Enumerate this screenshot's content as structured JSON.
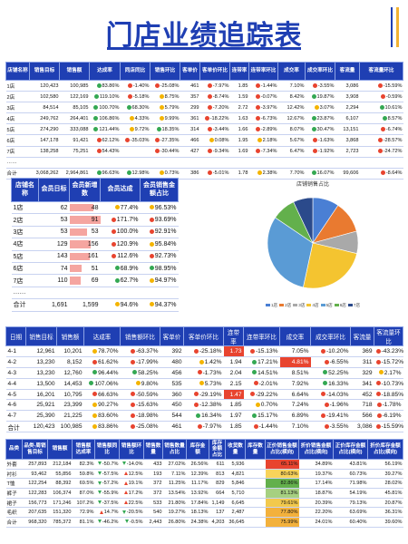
{
  "title": "门店业绩追踪表",
  "colors": {
    "primary": "#1f3fb3",
    "up": "#e8442f",
    "down": "#34a853",
    "highlight": "#e8442f"
  },
  "table1": {
    "headers": [
      "店铺名称",
      "销售目标",
      "销售额",
      "达成率",
      "同店同比",
      "销售环比",
      "客单价",
      "客单价环比",
      "连带率",
      "连带率环比",
      "成交率",
      "成交率环比",
      "客流量",
      "客流量环比"
    ],
    "rows": [
      {
        "name": "1店",
        "target": "120,423",
        "sales": "100,985",
        "rate": "83.86%",
        "rate_dot": "g",
        "yoy": "-1.40%",
        "yoy_dot": "r",
        "mom": "-25.08%",
        "mom_dot": "r",
        "price": "461",
        "price_mom": "-7.97%",
        "price_dot": "r",
        "join": "1.85",
        "join_mom": "-1.44%",
        "join_dot": "r",
        "deal": "7.10%",
        "deal_mom": "-3.55%",
        "deal_dot": "r",
        "traffic": "3,086",
        "traffic_mom": "-15.59%",
        "traffic_dot": "r"
      },
      {
        "name": "2店",
        "target": "102,580",
        "sales": "122,169",
        "rate": "119.10%",
        "rate_dot": "g",
        "yoy": "-5.18%",
        "yoy_dot": "r",
        "mom": "8.75%",
        "mom_dot": "y",
        "price": "357",
        "price_mom": "-8.74%",
        "price_dot": "r",
        "join": "1.59",
        "join_mom": "-0.07%",
        "join_dot": "r",
        "deal": "8.42%",
        "deal_mom": "19.87%",
        "deal_dot": "g",
        "traffic": "3,908",
        "traffic_mom": "-0.59%",
        "traffic_dot": "r"
      },
      {
        "name": "3店",
        "target": "84,514",
        "sales": "85,105",
        "rate": "100.70%",
        "rate_dot": "g",
        "yoy": "68.30%",
        "yoy_dot": "g",
        "mom": "5.79%",
        "mom_dot": "y",
        "price": "299",
        "price_mom": "-7.20%",
        "price_dot": "r",
        "join": "2.72",
        "join_mom": "-3.97%",
        "join_dot": "r",
        "deal": "12.42%",
        "deal_mom": "3.07%",
        "deal_dot": "y",
        "traffic": "2,294",
        "traffic_mom": "10.61%",
        "traffic_dot": "g"
      },
      {
        "name": "4店",
        "target": "249,762",
        "sales": "264,401",
        "rate": "106.86%",
        "rate_dot": "g",
        "yoy": "4.33%",
        "yoy_dot": "y",
        "mom": "9.99%",
        "mom_dot": "y",
        "price": "361",
        "price_mom": "-18.22%",
        "price_dot": "r",
        "join": "1.63",
        "join_mom": "-6.73%",
        "join_dot": "r",
        "deal": "12.67%",
        "deal_mom": "23.87%",
        "deal_dot": "g",
        "traffic": "6,107",
        "traffic_mom": "8.57%",
        "traffic_dot": "g"
      },
      {
        "name": "5店",
        "target": "274,290",
        "sales": "333,088",
        "rate": "121.44%",
        "rate_dot": "g",
        "yoy": "9.72%",
        "yoy_dot": "y",
        "mom": "18.35%",
        "mom_dot": "g",
        "price": "314",
        "price_mom": "-3.44%",
        "price_dot": "r",
        "join": "1.66",
        "join_mom": "-2.89%",
        "join_dot": "r",
        "deal": "8.07%",
        "deal_mom": "30.47%",
        "deal_dot": "g",
        "traffic": "13,151",
        "traffic_mom": "-6.74%",
        "traffic_dot": "r"
      },
      {
        "name": "6店",
        "target": "147,178",
        "sales": "91,421",
        "rate": "62.12%",
        "rate_dot": "r",
        "yoy": "-35.03%",
        "yoy_dot": "r",
        "mom": "-27.35%",
        "mom_dot": "r",
        "price": "466",
        "price_mom": "0.08%",
        "price_dot": "y",
        "join": "1.95",
        "join_mom": "2.18%",
        "join_dot": "y",
        "deal": "5.67%",
        "deal_mom": "-1.63%",
        "deal_dot": "r",
        "traffic": "3,868",
        "traffic_mom": "-28.57%",
        "traffic_dot": "r"
      },
      {
        "name": "7店",
        "target": "138,258",
        "sales": "75,251",
        "rate": "54.43%",
        "rate_dot": "r",
        "yoy": "",
        "yoy_dot": "",
        "mom": "-30.44%",
        "mom_dot": "r",
        "price": "427",
        "price_mom": "-9.34%",
        "price_dot": "r",
        "join": "1.69",
        "join_mom": "-7.34%",
        "join_dot": "r",
        "deal": "6.47%",
        "deal_mom": "-1.92%",
        "deal_dot": "r",
        "traffic": "2,723",
        "traffic_mom": "-24.72%",
        "traffic_dot": "r"
      },
      {
        "name": "……",
        "target": "",
        "sales": "",
        "rate": "",
        "rate_dot": "",
        "yoy": "",
        "yoy_dot": "",
        "mom": "",
        "mom_dot": "",
        "price": "",
        "price_mom": "",
        "price_dot": "",
        "join": "",
        "join_mom": "",
        "join_dot": "",
        "deal": "",
        "deal_mom": "",
        "deal_dot": "",
        "traffic": "",
        "traffic_mom": "",
        "traffic_dot": ""
      }
    ],
    "total": {
      "name": "合计",
      "target": "3,068,262",
      "sales": "2,964,861",
      "rate": "96.63%",
      "rate_dot": "g",
      "yoy": "12.98%",
      "yoy_dot": "g",
      "mom": "0.73%",
      "mom_dot": "y",
      "price": "386",
      "price_mom": "-5.01%",
      "price_dot": "r",
      "join": "1.78",
      "join_mom": "2.38%",
      "join_dot": "y",
      "deal": "7.70%",
      "deal_mom": "16.07%",
      "deal_dot": "g",
      "traffic": "99,606",
      "traffic_mom": "-8.64%",
      "traffic_dot": "r"
    }
  },
  "table2": {
    "headers": [
      "店铺名称",
      "会员日标",
      "会员新增数",
      "会员达成",
      "会员销售金额占比"
    ],
    "rows": [
      {
        "name": "1店",
        "target": "62",
        "added": "48",
        "rate": "77.4%",
        "rate_pct": 77.4,
        "rate_dot": "y",
        "share": "96.53%",
        "share_dot": "y"
      },
      {
        "name": "2店",
        "target": "53",
        "added": "91",
        "rate": "171.7%",
        "rate_pct": 100,
        "rate_dot": "r",
        "share": "93.69%",
        "share_dot": "r"
      },
      {
        "name": "3店",
        "target": "53",
        "added": "53",
        "rate": "100.0%",
        "rate_pct": 58.2,
        "rate_dot": "r",
        "share": "92.91%",
        "share_dot": "r"
      },
      {
        "name": "4店",
        "target": "129",
        "added": "156",
        "rate": "120.9%",
        "rate_pct": 70.4,
        "rate_dot": "r",
        "share": "95.84%",
        "share_dot": "y"
      },
      {
        "name": "5店",
        "target": "143",
        "added": "161",
        "rate": "112.6%",
        "rate_pct": 65.6,
        "rate_dot": "r",
        "share": "92.73%",
        "share_dot": "r"
      },
      {
        "name": "6店",
        "target": "74",
        "added": "51",
        "rate": "68.9%",
        "rate_pct": 40.1,
        "rate_dot": "g",
        "share": "98.95%",
        "share_dot": "g"
      },
      {
        "name": "7店",
        "target": "110",
        "added": "69",
        "rate": "62.7%",
        "rate_pct": 36.5,
        "rate_dot": "g",
        "share": "94.97%",
        "share_dot": "y"
      },
      {
        "name": "……",
        "target": "",
        "added": "",
        "rate": "",
        "rate_pct": 0,
        "rate_dot": "",
        "share": "",
        "share_dot": ""
      }
    ],
    "total": {
      "name": "合计",
      "target": "1,691",
      "added": "1,599",
      "rate": "94.6%",
      "rate_dot": "y",
      "share": "94.37%",
      "share_dot": "y"
    }
  },
  "chart_data": {
    "type": "pie",
    "title": "店铺销售占比",
    "categories": [
      "1店",
      "2店",
      "3店",
      "4店",
      "5店",
      "6店",
      "7店"
    ],
    "values": [
      100985,
      122169,
      85105,
      264401,
      333088,
      91421,
      75251
    ],
    "colors": [
      "#4a7fd4",
      "#e97a30",
      "#a9a9a9",
      "#f4c430",
      "#5a9bd5",
      "#63b04c",
      "#2b4a8b"
    ]
  },
  "table3": {
    "headers": [
      "日期",
      "销售目标",
      "销售额",
      "达成率",
      "销售额环比",
      "客单价",
      "客单价环比",
      "连带率",
      "连带率环比",
      "成交率",
      "成交率环比",
      "客流量",
      "客流量环比"
    ],
    "rows": [
      {
        "date": "4-1",
        "target": "12,961",
        "sales": "10,201",
        "rate": "78.70%",
        "rate_dot": "y",
        "mom": "-63.37%",
        "mom_dot": "r",
        "price": "392",
        "price_mom": "-25.18%",
        "price_dot": "r",
        "join": "1.73",
        "join_hl": true,
        "join_mom": "-15.13%",
        "join_dot": "r",
        "deal": "7.05%",
        "deal_hl": false,
        "deal_mom": "-10.20%",
        "deal_dot": "r",
        "traffic": "369",
        "traffic_mom": "-43.23%",
        "traffic_dot": "r"
      },
      {
        "date": "4-2",
        "target": "13,230",
        "sales": "8,152",
        "rate": "61.62%",
        "rate_dot": "r",
        "mom": "-17.99%",
        "mom_dot": "r",
        "price": "480",
        "price_mom": "1.42%",
        "price_dot": "y",
        "join": "1.94",
        "join_hl": false,
        "join_mom": "17.21%",
        "join_dot": "g",
        "deal": "4.81%",
        "deal_hl": true,
        "deal_mom": "-6.55%",
        "deal_dot": "r",
        "traffic": "311",
        "traffic_mom": "-15.72%",
        "traffic_dot": "r"
      },
      {
        "date": "4-3",
        "target": "13,230",
        "sales": "12,760",
        "rate": "96.44%",
        "rate_dot": "g",
        "mom": "58.25%",
        "mom_dot": "g",
        "price": "456",
        "price_mom": "-1.73%",
        "price_dot": "r",
        "join": "2.04",
        "join_hl": false,
        "join_mom": "14.51%",
        "join_dot": "g",
        "deal": "8.51%",
        "deal_hl": false,
        "deal_mom": "52.25%",
        "deal_dot": "g",
        "traffic": "329",
        "traffic_mom": "2.17%",
        "traffic_dot": "y"
      },
      {
        "date": "4-4",
        "target": "13,500",
        "sales": "14,453",
        "rate": "107.06%",
        "rate_dot": "g",
        "mom": "9.80%",
        "mom_dot": "y",
        "price": "535",
        "price_mom": "5.73%",
        "price_dot": "y",
        "join": "2.15",
        "join_hl": false,
        "join_mom": "-2.01%",
        "join_dot": "r",
        "deal": "7.92%",
        "deal_hl": false,
        "deal_mom": "16.33%",
        "deal_dot": "g",
        "traffic": "341",
        "traffic_mom": "-10.73%",
        "traffic_dot": "r"
      },
      {
        "date": "4-5",
        "target": "16,201",
        "sales": "10,795",
        "rate": "66.63%",
        "rate_dot": "r",
        "mom": "-50.59%",
        "mom_dot": "r",
        "price": "360",
        "price_mom": "-29.19%",
        "price_dot": "r",
        "join": "1.47",
        "join_hl": true,
        "join_mom": "-29.22%",
        "join_dot": "r",
        "deal": "6.64%",
        "deal_hl": false,
        "deal_mom": "-14.03%",
        "deal_dot": "r",
        "traffic": "452",
        "traffic_mom": "-18.85%",
        "traffic_dot": "r"
      },
      {
        "date": "4-6",
        "target": "25,921",
        "sales": "23,399",
        "rate": "90.27%",
        "rate_dot": "y",
        "mom": "-15.63%",
        "mom_dot": "r",
        "price": "450",
        "price_mom": "-12.38%",
        "price_dot": "r",
        "join": "1.85",
        "join_hl": false,
        "join_mom": "0.70%",
        "join_dot": "y",
        "deal": "7.24%",
        "deal_hl": false,
        "deal_mom": "-1.96%",
        "deal_dot": "r",
        "traffic": "718",
        "traffic_mom": "-1.78%",
        "traffic_dot": "r"
      },
      {
        "date": "4-7",
        "target": "25,390",
        "sales": "21,225",
        "rate": "83.60%",
        "rate_dot": "y",
        "mom": "-18.98%",
        "mom_dot": "r",
        "price": "544",
        "price_mom": "16.34%",
        "price_dot": "g",
        "join": "1.97",
        "join_hl": false,
        "join_mom": "15.17%",
        "join_dot": "g",
        "deal": "6.89%",
        "deal_hl": false,
        "deal_mom": "-19.41%",
        "deal_dot": "r",
        "traffic": "566",
        "traffic_mom": "-6.19%",
        "traffic_dot": "r"
      }
    ],
    "total": {
      "date": "合计",
      "target": "120,423",
      "sales": "100,985",
      "rate": "83.86%",
      "rate_dot": "y",
      "mom": "-25.08%",
      "mom_dot": "r",
      "price": "461",
      "price_mom": "-7.97%",
      "price_dot": "r",
      "join": "1.85",
      "join_hl": false,
      "join_mom": "-1.44%",
      "join_dot": "r",
      "deal": "7.10%",
      "deal_hl": false,
      "deal_mom": "-3.55%",
      "deal_dot": "r",
      "traffic": "3,086",
      "traffic_mom": "-15.59%",
      "traffic_dot": "r"
    }
  },
  "table4": {
    "headers": [
      "品类",
      "品类-周销售目标",
      "销售额",
      "销售额达成率",
      "销售额同比",
      "销售额环比",
      "销售数量",
      "销售数量占比",
      "库存金额",
      "库存金额占比",
      "收货数量",
      "库存数量",
      "正价销售金额占比(横向)",
      "折价销售金额占比(横向)",
      "正价库存金额占比(横向)",
      "折价库存金额占比(横向)"
    ],
    "rows": [
      {
        "cat": "外套",
        "target": "257,893",
        "sales": "212,184",
        "rate": "82.3%",
        "yoy": "-50.7%",
        "yoy_tri": "d",
        "mom": "-14.0%",
        "mom_tri": "d",
        "qty": "433",
        "qty_share": "27.02%",
        "stock": "26.56%",
        "stock_share": "611",
        "recv": "5,936",
        "inv": "",
        "p1": "65.11%",
        "p1_bg": "#e8442f",
        "p2": "34.89%",
        "p3": "43.81%",
        "p4": "56.19%"
      },
      {
        "cat": "衬衫",
        "target": "93,462",
        "sales": "55,856",
        "rate": "59.8%",
        "yoy": "-57.5%",
        "yoy_tri": "d",
        "mom": "12.5%",
        "mom_tri": "u",
        "qty": "193",
        "qty_share": "7.11%",
        "stock": "12.39%",
        "stock_share": "813",
        "recv": "4,821",
        "inv": "",
        "p1": "80.63%",
        "p1_bg": "#f8d35a",
        "p2": "19.37%",
        "p3": "60.73%",
        "p4": "39.27%"
      },
      {
        "cat": "T恤",
        "target": "122,254",
        "sales": "88,392",
        "rate": "69.5%",
        "yoy": "-57.2%",
        "yoy_tri": "d",
        "mom": "19.1%",
        "mom_tri": "u",
        "qty": "372",
        "qty_share": "11.25%",
        "stock": "11.17%",
        "stock_share": "829",
        "recv": "5,846",
        "inv": "",
        "p1": "82.86%",
        "p1_bg": "#63b04c",
        "p2": "17.14%",
        "p3": "71.98%",
        "p4": "28.02%"
      },
      {
        "cat": "裤子",
        "target": "122,283",
        "sales": "106,374",
        "rate": "87.0%",
        "yoy": "-55.9%",
        "yoy_tri": "d",
        "mom": "17.2%",
        "mom_tri": "u",
        "qty": "372",
        "qty_share": "13.54%",
        "stock": "13.92%",
        "stock_share": "664",
        "recv": "5,710",
        "inv": "",
        "p1": "81.13%",
        "p1_bg": "#a6d080",
        "p2": "18.87%",
        "p3": "54.19%",
        "p4": "45.81%"
      },
      {
        "cat": "裙子",
        "target": "156,773",
        "sales": "171,246",
        "rate": "107.2%",
        "yoy": "-37.5%",
        "yoy_tri": "d",
        "mom": "22.5%",
        "mom_tri": "u",
        "qty": "533",
        "qty_share": "21.80%",
        "stock": "17.84%",
        "stock_share": "1,149",
        "recv": "6,645",
        "inv": "",
        "p1": "79.61%",
        "p1_bg": "#f2c94c",
        "p2": "20.39%",
        "p3": "79.13%",
        "p4": "20.87%"
      },
      {
        "cat": "毛织",
        "target": "207,635",
        "sales": "151,320",
        "rate": "72.9%",
        "yoy": "14.7%",
        "yoy_tri": "u",
        "mom": "-20.5%",
        "mom_tri": "d",
        "qty": "540",
        "qty_share": "19.27%",
        "stock": "18.13%",
        "stock_share": "137",
        "recv": "2,487",
        "inv": "",
        "p1": "77.80%",
        "p1_bg": "#f3b13c",
        "p2": "22.20%",
        "p3": "63.69%",
        "p4": "36.31%"
      }
    ],
    "total": {
      "cat": "合计",
      "target": "968,320",
      "sales": "785,372",
      "rate": "81.1%",
      "yoy": "-46.2%",
      "yoy_tri": "d",
      "mom": "-0.5%",
      "mom_tri": "d",
      "qty": "2,443",
      "qty_share": "26.80%",
      "stock": "24.38%",
      "stock_share": "4,203",
      "recv": "36,645",
      "inv": "",
      "p1": "75.99%",
      "p1_bg": "#f3b13c",
      "p2": "24.01%",
      "p3": "60.40%",
      "p4": "39.60%"
    }
  }
}
